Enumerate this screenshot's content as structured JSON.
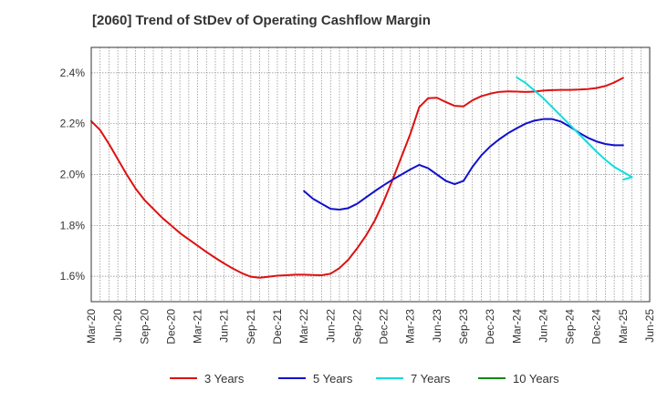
{
  "title": "[2060]  Trend of StDev of Operating Cashflow Margin",
  "chart_data": {
    "type": "line",
    "x_ticks": [
      "Mar-20",
      "Jun-20",
      "Sep-20",
      "Dec-20",
      "Mar-21",
      "Jun-21",
      "Sep-21",
      "Dec-21",
      "Mar-22",
      "Jun-22",
      "Sep-22",
      "Dec-22",
      "Mar-23",
      "Jun-23",
      "Sep-23",
      "Dec-23",
      "Mar-24",
      "Jun-24",
      "Sep-24",
      "Dec-24",
      "Mar-25",
      "Jun-25"
    ],
    "y_ticks": [
      "1.6%",
      "1.8%",
      "2.0%",
      "2.2%",
      "2.4%"
    ],
    "y_tick_values": [
      1.6,
      1.8,
      2.0,
      2.2,
      2.4
    ],
    "ylim": [
      1.5,
      2.5
    ],
    "grid": true,
    "legend_position": "bottom",
    "series": [
      {
        "name": "3 Years",
        "color": "#dd1111",
        "points": [
          [
            "Mar-20",
            2.21
          ],
          [
            "Apr-20",
            2.175
          ],
          [
            "May-20",
            2.12
          ],
          [
            "Jun-20",
            2.06
          ],
          [
            "Jul-20",
            2.0
          ],
          [
            "Aug-20",
            1.945
          ],
          [
            "Sep-20",
            1.9
          ],
          [
            "Oct-20",
            1.865
          ],
          [
            "Nov-20",
            1.83
          ],
          [
            "Dec-20",
            1.8
          ],
          [
            "Jan-21",
            1.77
          ],
          [
            "Feb-21",
            1.745
          ],
          [
            "Mar-21",
            1.72
          ],
          [
            "Apr-21",
            1.695
          ],
          [
            "May-21",
            1.672
          ],
          [
            "Jun-21",
            1.65
          ],
          [
            "Jul-21",
            1.63
          ],
          [
            "Aug-21",
            1.612
          ],
          [
            "Sep-21",
            1.598
          ],
          [
            "Oct-21",
            1.594
          ],
          [
            "Nov-21",
            1.598
          ],
          [
            "Dec-21",
            1.602
          ],
          [
            "Jan-22",
            1.604
          ],
          [
            "Feb-22",
            1.606
          ],
          [
            "Mar-22",
            1.606
          ],
          [
            "Apr-22",
            1.605
          ],
          [
            "May-22",
            1.604
          ],
          [
            "Jun-22",
            1.61
          ],
          [
            "Jul-22",
            1.632
          ],
          [
            "Aug-22",
            1.665
          ],
          [
            "Sep-22",
            1.71
          ],
          [
            "Oct-22",
            1.76
          ],
          [
            "Nov-22",
            1.82
          ],
          [
            "Dec-22",
            1.895
          ],
          [
            "Jan-23",
            1.98
          ],
          [
            "Feb-23",
            2.07
          ],
          [
            "Mar-23",
            2.16
          ],
          [
            "Apr-23",
            2.265
          ],
          [
            "May-23",
            2.3
          ],
          [
            "Jun-23",
            2.302
          ],
          [
            "Jul-23",
            2.285
          ],
          [
            "Aug-23",
            2.27
          ],
          [
            "Sep-23",
            2.268
          ],
          [
            "Oct-23",
            2.292
          ],
          [
            "Nov-23",
            2.308
          ],
          [
            "Dec-23",
            2.318
          ],
          [
            "Jan-24",
            2.325
          ],
          [
            "Feb-24",
            2.327
          ],
          [
            "Mar-24",
            2.326
          ],
          [
            "Apr-24",
            2.325
          ],
          [
            "May-24",
            2.326
          ],
          [
            "Jun-24",
            2.33
          ],
          [
            "Jul-24",
            2.332
          ],
          [
            "Aug-24",
            2.333
          ],
          [
            "Sep-24",
            2.333
          ],
          [
            "Oct-24",
            2.334
          ],
          [
            "Nov-24",
            2.336
          ],
          [
            "Dec-24",
            2.34
          ],
          [
            "Jan-25",
            2.348
          ],
          [
            "Feb-25",
            2.362
          ],
          [
            "Mar-25",
            2.38
          ]
        ]
      },
      {
        "name": "5 Years",
        "color": "#1111cc",
        "points": [
          [
            "Mar-22",
            1.935
          ],
          [
            "Apr-22",
            1.905
          ],
          [
            "May-22",
            1.885
          ],
          [
            "Jun-22",
            1.865
          ],
          [
            "Jul-22",
            1.862
          ],
          [
            "Aug-22",
            1.868
          ],
          [
            "Sep-22",
            1.885
          ],
          [
            "Oct-22",
            1.91
          ],
          [
            "Nov-22",
            1.935
          ],
          [
            "Dec-22",
            1.958
          ],
          [
            "Jan-23",
            1.98
          ],
          [
            "Feb-23",
            2.0
          ],
          [
            "Mar-23",
            2.02
          ],
          [
            "Apr-23",
            2.038
          ],
          [
            "May-23",
            2.025
          ],
          [
            "Jun-23",
            2.0
          ],
          [
            "Jul-23",
            1.975
          ],
          [
            "Aug-23",
            1.962
          ],
          [
            "Sep-23",
            1.975
          ],
          [
            "Oct-23",
            2.03
          ],
          [
            "Nov-23",
            2.075
          ],
          [
            "Dec-23",
            2.11
          ],
          [
            "Jan-24",
            2.138
          ],
          [
            "Feb-24",
            2.162
          ],
          [
            "Mar-24",
            2.182
          ],
          [
            "Apr-24",
            2.2
          ],
          [
            "May-24",
            2.212
          ],
          [
            "Jun-24",
            2.218
          ],
          [
            "Jul-24",
            2.218
          ],
          [
            "Aug-24",
            2.208
          ],
          [
            "Sep-24",
            2.188
          ],
          [
            "Oct-24",
            2.165
          ],
          [
            "Nov-24",
            2.145
          ],
          [
            "Dec-24",
            2.13
          ],
          [
            "Jan-25",
            2.12
          ],
          [
            "Feb-25",
            2.115
          ],
          [
            "Mar-25",
            2.115
          ]
        ]
      },
      {
        "name": "7 Years",
        "color": "#11dddd",
        "points": [
          [
            "Mar-24",
            2.382
          ],
          [
            "Apr-24",
            2.36
          ],
          [
            "May-24",
            2.33
          ],
          [
            "Jun-24",
            2.3
          ],
          [
            "Jul-24",
            2.265
          ],
          [
            "Aug-24",
            2.23
          ],
          [
            "Sep-24",
            2.195
          ],
          [
            "Oct-24",
            2.16
          ],
          [
            "Nov-24",
            2.125
          ],
          [
            "Dec-24",
            2.09
          ],
          [
            "Jan-25",
            2.058
          ],
          [
            "Feb-25",
            2.03
          ],
          [
            "Mar-25",
            2.01
          ],
          [
            "Apr-25",
            1.99
          ],
          [
            "Mar-25",
            1.98
          ]
        ]
      },
      {
        "name": "10 Years",
        "color": "#118811",
        "points": []
      }
    ]
  }
}
